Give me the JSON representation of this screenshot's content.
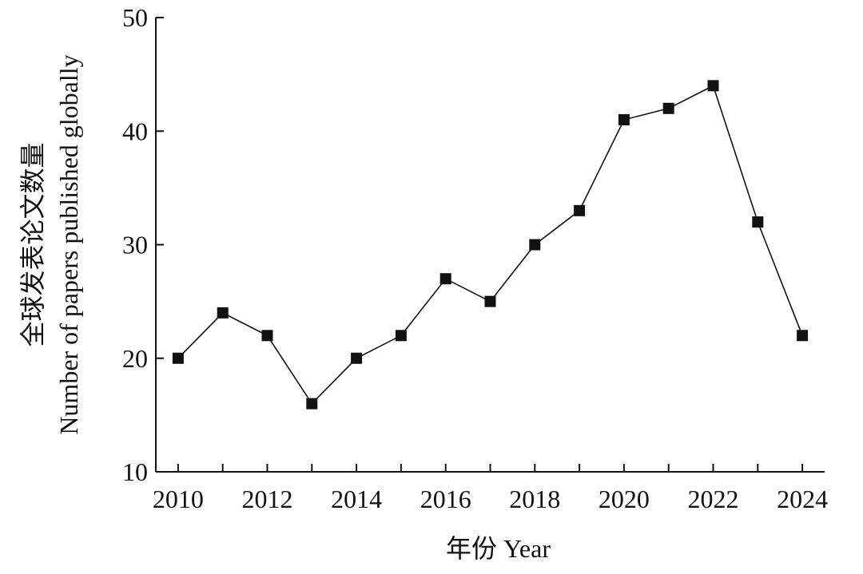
{
  "chart_data": {
    "type": "line",
    "title": "",
    "xlabel": "年份 Year",
    "ylabel": [
      "全球发表论文数量",
      "Number of papers published globally"
    ],
    "xlim": [
      2009.5,
      2024.5
    ],
    "ylim": [
      10,
      50
    ],
    "x_ticks": [
      2010,
      2012,
      2014,
      2016,
      2018,
      2020,
      2022,
      2024
    ],
    "y_ticks": [
      10,
      20,
      30,
      40,
      50
    ],
    "grid": false,
    "legend": "none",
    "marker": "square",
    "line_color": "#111111",
    "series": [
      {
        "x": [
          2010,
          2011,
          2012,
          2013,
          2014,
          2015,
          2016,
          2017,
          2018,
          2019,
          2020,
          2021,
          2022,
          2023,
          2024
        ],
        "values": [
          20,
          24,
          22,
          16,
          20,
          22,
          27,
          25,
          30,
          33,
          41,
          42,
          44,
          32,
          22
        ]
      }
    ]
  }
}
